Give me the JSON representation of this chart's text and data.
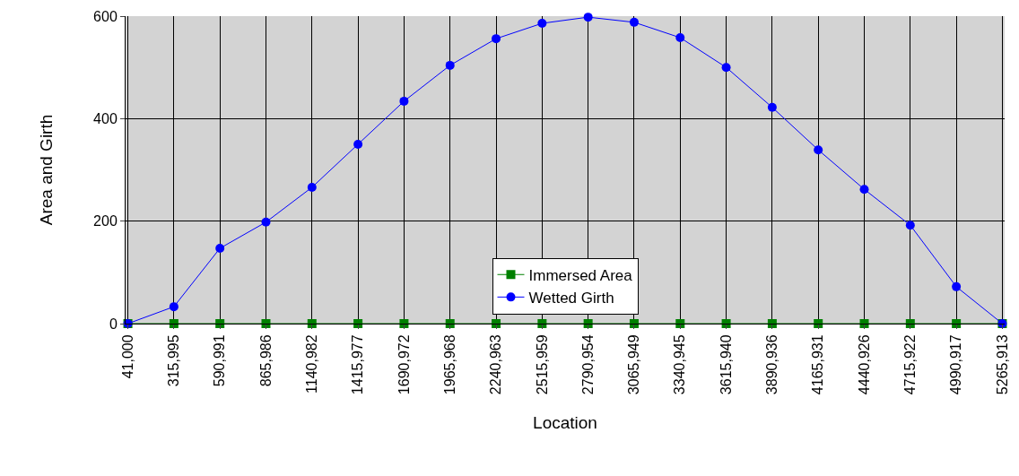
{
  "chart_data": {
    "type": "line",
    "xlabel": "Location",
    "ylabel": "Area and Girth",
    "categories": [
      "41,000",
      "315,995",
      "590,991",
      "865,986",
      "1140,982",
      "1415,977",
      "1690,972",
      "1965,968",
      "2240,963",
      "2515,959",
      "2790,954",
      "3065,949",
      "3340,945",
      "3615,940",
      "3890,936",
      "4165,931",
      "4440,926",
      "4715,922",
      "4990,917",
      "5265,913"
    ],
    "series": [
      {
        "name": "Immersed Area",
        "color": "#008000",
        "marker": "square",
        "values": [
          0,
          0,
          0,
          0,
          0,
          0,
          0,
          0,
          0,
          0,
          0,
          0,
          0,
          0,
          0,
          0,
          0,
          0,
          0,
          0
        ]
      },
      {
        "name": "Wetted Girth",
        "color": "#0000ff",
        "marker": "circle",
        "values": [
          0,
          33,
          147,
          198,
          266,
          350,
          434,
          504,
          556,
          586,
          598,
          588,
          558,
          500,
          422,
          339,
          262,
          192,
          72,
          0
        ]
      }
    ],
    "ylim": [
      0,
      600
    ],
    "yticks": [
      0,
      200,
      400,
      600
    ],
    "grid": true,
    "legend": "bottom",
    "line_style": "solid"
  }
}
